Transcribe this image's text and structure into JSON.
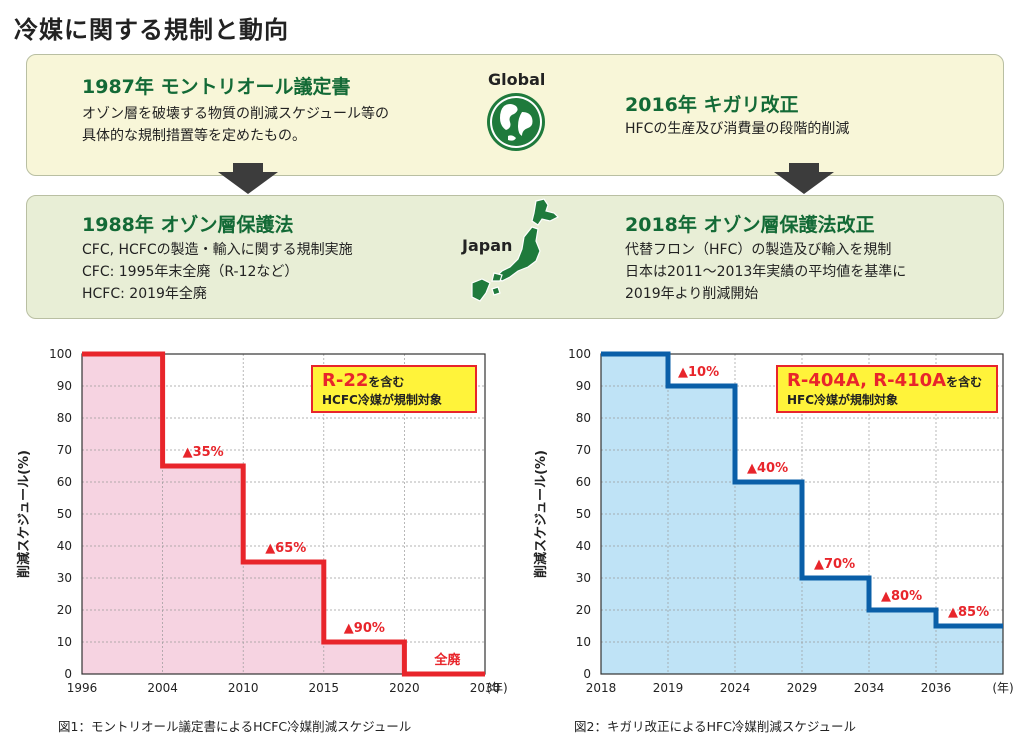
{
  "title": "冷媒に関する規制と動向",
  "global": {
    "label": "Global",
    "left": {
      "title": "1987年 モントリオール議定書",
      "lines": [
        "オゾン層を破壊する物質の削減スケジュール等の",
        "具体的な規制措置等を定めたもの。"
      ]
    },
    "right": {
      "title": "2016年 キガリ改正",
      "lines": [
        "HFCの生産及び消費量の段階的削減"
      ]
    }
  },
  "japan": {
    "label": "Japan",
    "left": {
      "title": "1988年 オゾン層保護法",
      "lines": [
        "CFC, HCFCの製造・輸入に関する規制実施",
        "CFC: 1995年末全廃（R-12など）",
        "HCFC: 2019年全廃"
      ]
    },
    "right": {
      "title": "2018年 オゾン層保護法改正",
      "lines": [
        "代替フロン（HFC）の製造及び輸入を規制",
        "日本は2011〜2013年実績の平均値を基準に",
        "2019年より削減開始"
      ]
    }
  },
  "colors": {
    "green": "#136a36",
    "red": "#e8252b",
    "pink_fill": "#f6d3e1",
    "blue": "#0a5fa8",
    "blue_fill": "#bfe3f6",
    "callout_bg": "#fff33a"
  },
  "chart_data": [
    {
      "type": "area",
      "ylabel": "削減スケジュール(%)",
      "x_ticks": [
        "1996",
        "2004",
        "2010",
        "2015",
        "2020",
        "2030"
      ],
      "x_unit": "(年)",
      "ylim": [
        0,
        100
      ],
      "y_ticks": [
        0,
        10,
        20,
        30,
        40,
        50,
        60,
        70,
        80,
        90,
        100
      ],
      "grid": true,
      "series": [
        {
          "x": [
            "1996",
            "2004",
            "2004",
            "2010",
            "2010",
            "2015",
            "2015",
            "2020",
            "2020",
            "2030"
          ],
          "values": [
            100,
            100,
            65,
            65,
            35,
            35,
            10,
            10,
            0,
            0
          ]
        }
      ],
      "annotations": [
        {
          "text": "▲35%",
          "x": "2004",
          "y": 65
        },
        {
          "text": "▲65%",
          "x": "2010",
          "y": 35
        },
        {
          "text": "▲90%",
          "x": "2015",
          "y": 10
        },
        {
          "text": "全廃",
          "x": "2020",
          "y": 0
        }
      ],
      "callout": {
        "highlight": "R-22",
        "suffix": "を含む",
        "line2": "HCFC冷媒が規制対象"
      },
      "caption": "図1：モントリオール議定書によるHCFC冷媒削減スケジュール"
    },
    {
      "type": "area",
      "ylabel": "削減スケジュール(%)",
      "x_ticks": [
        "2018",
        "2019",
        "2024",
        "2029",
        "2034",
        "2036"
      ],
      "x_unit": "(年)",
      "ylim": [
        0,
        100
      ],
      "y_ticks": [
        0,
        10,
        20,
        30,
        40,
        50,
        60,
        70,
        80,
        90,
        100
      ],
      "grid": true,
      "series": [
        {
          "x": [
            "2018",
            "2019",
            "2019",
            "2024",
            "2024",
            "2029",
            "2029",
            "2034",
            "2034",
            "2036",
            "2036",
            "(年)"
          ],
          "values": [
            100,
            100,
            90,
            90,
            60,
            60,
            30,
            30,
            20,
            20,
            15,
            15
          ]
        }
      ],
      "annotations": [
        {
          "text": "▲10%",
          "x": "2019",
          "y": 90
        },
        {
          "text": "▲40%",
          "x": "2024",
          "y": 60
        },
        {
          "text": "▲70%",
          "x": "2029",
          "y": 30
        },
        {
          "text": "▲80%",
          "x": "2034",
          "y": 20
        },
        {
          "text": "▲85%",
          "x": "2036",
          "y": 15
        }
      ],
      "callout": {
        "highlight": "R-404A, R-410A",
        "suffix": "を含む",
        "line2": "HFC冷媒が規制対象"
      },
      "caption": "図2：キガリ改正によるHFC冷媒削減スケジュール"
    }
  ]
}
